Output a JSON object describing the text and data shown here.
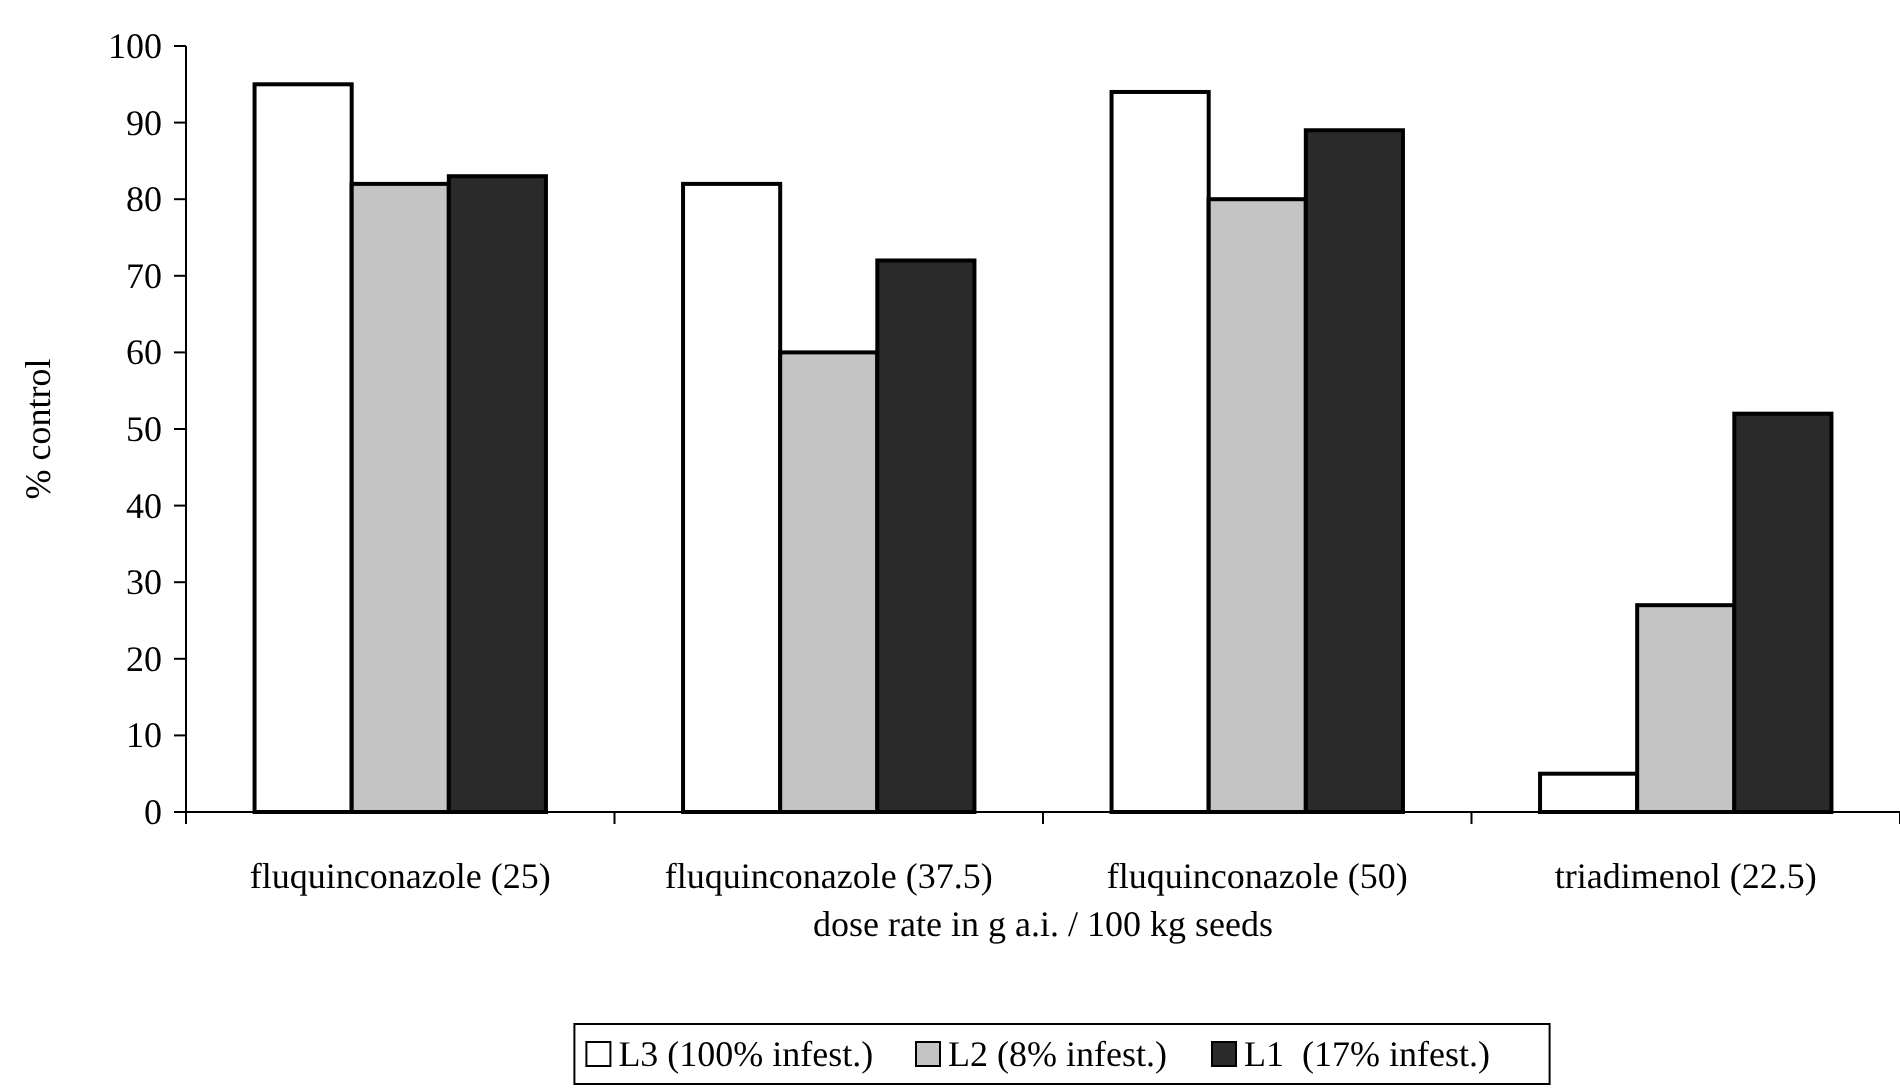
{
  "chart_data": {
    "type": "bar",
    "ylabel": "% control",
    "xlabel": "dose rate in g a.i. / 100 kg seeds",
    "categories": [
      "fluquinconazole (25)",
      "fluquinconazole (37.5)",
      "fluquinconazole (50)",
      "triadimenol (22.5)"
    ],
    "series": [
      {
        "name": "L3 (100% infest.)",
        "color": "#ffffff",
        "values": [
          95,
          82,
          94,
          5
        ]
      },
      {
        "name": "L2 (8% infest.)",
        "color": "#c4c4c4",
        "values": [
          82,
          60,
          80,
          27
        ]
      },
      {
        "name": "L1  (17% infest.)",
        "color": "#2a2a2a",
        "values": [
          83,
          72,
          89,
          52
        ]
      }
    ],
    "ylim": [
      0,
      100
    ],
    "yticks": [
      0,
      10,
      20,
      30,
      40,
      50,
      60,
      70,
      80,
      90,
      100
    ],
    "legend": "bottom"
  }
}
